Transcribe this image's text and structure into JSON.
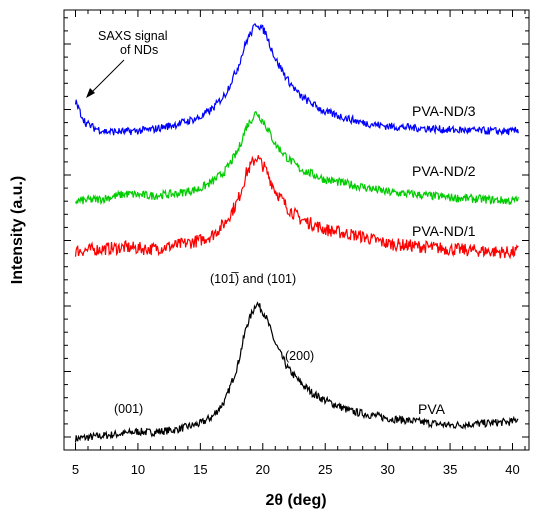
{
  "chart_data": {
    "type": "line",
    "xlabel": "2θ (deg)",
    "ylabel": "Intensity (a.u.)",
    "xlim": [
      4.5,
      41.5
    ],
    "x_ticks": [
      "5",
      "10",
      "15",
      "20",
      "25",
      "30",
      "35",
      "40"
    ],
    "grid": false,
    "legend": "none (series labelled inline at right)",
    "series": [
      {
        "name": "PVA",
        "color": "#000000",
        "x": [
          5,
          7,
          9,
          10,
          11,
          13,
          15,
          16,
          17,
          18,
          18.7,
          19.5,
          20.2,
          21,
          22,
          23,
          24,
          25,
          27,
          30,
          35,
          40,
          40.5
        ],
        "y": [
          -1.5,
          0,
          1.5,
          2.5,
          2,
          3.5,
          7,
          11,
          20,
          40,
          62,
          75,
          68,
          52,
          38,
          30,
          24,
          20,
          14,
          10,
          6,
          8,
          10
        ]
      },
      {
        "name": "PVA-ND/1",
        "color": "#ff0000",
        "x": [
          5,
          7,
          9,
          11,
          13,
          15,
          16,
          17,
          18,
          18.7,
          19.5,
          20.2,
          21,
          22,
          23,
          25,
          28,
          30,
          35,
          40,
          40.5
        ],
        "y": [
          104,
          105,
          106,
          105,
          107,
          110,
          113,
          120,
          132,
          148,
          157,
          150,
          138,
          128,
          122,
          116,
          112,
          108,
          105,
          103,
          104
        ]
      },
      {
        "name": "PVA-ND/2",
        "color": "#00cc00",
        "x": [
          5,
          7,
          9,
          11,
          13,
          15,
          16,
          17,
          18,
          18.7,
          19.5,
          20.2,
          21,
          22,
          23,
          25,
          28,
          30,
          35,
          40,
          40.5
        ],
        "y": [
          132,
          133,
          136,
          135,
          136,
          139,
          143,
          149,
          160,
          174,
          182,
          175,
          164,
          156,
          150,
          144,
          140,
          137,
          134,
          132,
          133
        ]
      },
      {
        "name": "PVA-ND/3",
        "color": "#0000ff",
        "x": [
          5,
          5.3,
          5.8,
          6.5,
          7.5,
          9,
          11,
          13,
          15,
          16,
          17,
          18,
          18.7,
          19.5,
          20.2,
          21,
          22,
          23,
          25,
          28,
          30,
          35,
          40,
          40.5
        ],
        "y": [
          188,
          183,
          176,
          173,
          171,
          171,
          172,
          175,
          179,
          184,
          192,
          207,
          222,
          232,
          227,
          212,
          200,
          191,
          182,
          176,
          174,
          172,
          171,
          172
        ]
      }
    ],
    "series_labels": [
      "PVA-ND/3",
      "PVA-ND/2",
      "PVA-ND/1",
      "PVA"
    ],
    "annotations": [
      "SAXS signal",
      "of NDs",
      "(001)",
      "(200)",
      "(10",
      "1",
      "̅",
      ") and (101)"
    ]
  }
}
